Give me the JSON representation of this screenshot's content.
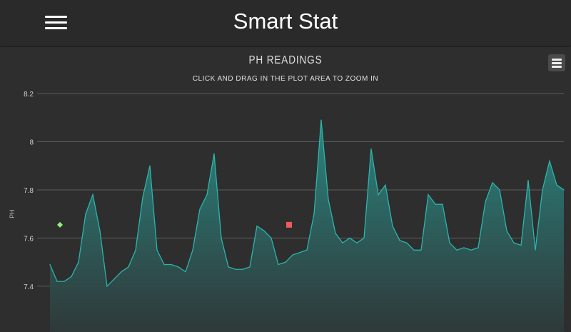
{
  "app": {
    "title": "Smart Stat",
    "menu_icon": "hamburger-icon"
  },
  "chart_data": {
    "type": "area",
    "title": "PH READINGS",
    "subtitle": "CLICK AND DRAG IN THE PLOT AREA TO ZOOM IN",
    "ylabel": "PH",
    "xlabel": "",
    "ylim": [
      7.21,
      8.2
    ],
    "yticks": [
      "7.4",
      "7.6",
      "7.8",
      "8",
      "8.2"
    ],
    "ytick_values": [
      7.4,
      7.6,
      7.8,
      8.0,
      8.2
    ],
    "grid": true,
    "colors": {
      "line": "#2bb5ac",
      "fill_top": "#2a8a84",
      "fill_bottom": "#2f3a3a",
      "marker_green": "#8ef07a",
      "marker_red": "#f05a5a"
    },
    "values": [
      7.49,
      7.42,
      7.42,
      7.44,
      7.5,
      7.7,
      7.78,
      7.63,
      7.4,
      7.43,
      7.46,
      7.48,
      7.55,
      7.77,
      7.9,
      7.55,
      7.49,
      7.49,
      7.48,
      7.46,
      7.55,
      7.72,
      7.78,
      7.95,
      7.6,
      7.48,
      7.47,
      7.47,
      7.48,
      7.65,
      7.63,
      7.6,
      7.49,
      7.5,
      7.53,
      7.54,
      7.55,
      7.7,
      8.09,
      7.76,
      7.62,
      7.58,
      7.6,
      7.58,
      7.6,
      7.97,
      7.78,
      7.82,
      7.65,
      7.59,
      7.58,
      7.55,
      7.55,
      7.78,
      7.74,
      7.74,
      7.58,
      7.55,
      7.56,
      7.55,
      7.56,
      7.75,
      7.83,
      7.8,
      7.63,
      7.58,
      7.57,
      7.84,
      7.55,
      7.8,
      7.92,
      7.82,
      7.8
    ],
    "markers": [
      {
        "shape": "diamond",
        "color": "#8ef07a",
        "index": 1.4,
        "value": 7.655
      },
      {
        "shape": "square",
        "color": "#f05a5a",
        "index": 33.5,
        "value": 7.655
      }
    ]
  },
  "chart_menu_icon": "chart-menu-icon"
}
